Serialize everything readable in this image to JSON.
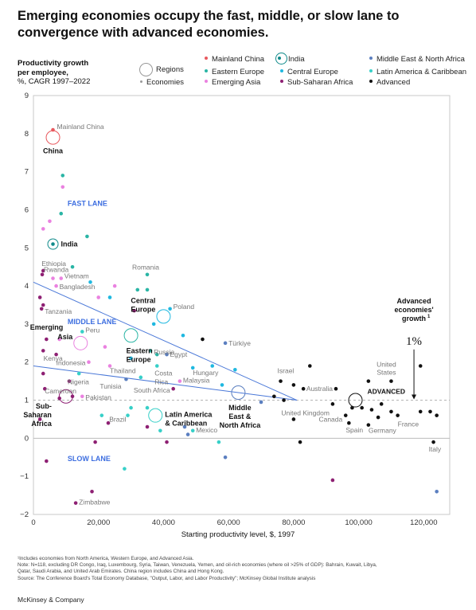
{
  "title": "Emerging economies occupy the fast, middle, or slow lane to convergence with advanced economies.",
  "y_axis_title": {
    "line1": "Productivity growth",
    "line2": "per employee,",
    "line3": "%, CAGR 1997–2022"
  },
  "x_axis_title": "Starting productivity level, $, 1997",
  "legend": {
    "regions_label": "Regions",
    "economies_label": "Economies",
    "items": [
      {
        "label": "Mainland China",
        "color": "#e8595e"
      },
      {
        "label": "India",
        "color": "#0f8a8a"
      },
      {
        "label": "Middle East & North Africa",
        "color": "#5b7fc0"
      },
      {
        "label": "Eastern Europe",
        "color": "#2ab5a5"
      },
      {
        "label": "Central Europe",
        "color": "#1fb8e0"
      },
      {
        "label": "Latin America & Caribbean",
        "color": "#37d0c8"
      },
      {
        "label": "Emerging Asia",
        "color": "#ea82e0"
      },
      {
        "label": "Sub-Saharan Africa",
        "color": "#8e2073"
      },
      {
        "label": "Advanced",
        "color": "#111111"
      }
    ]
  },
  "annotations": {
    "fast_lane": "FAST LANE",
    "middle_lane": "MIDDLE LANE",
    "slow_lane": "SLOW LANE",
    "advanced": "ADVANCED",
    "adv_growth_1": "Advanced",
    "adv_growth_2": "economies'",
    "adv_growth_3": "growth",
    "adv_growth_sup": "1",
    "adv_growth_value": "1%"
  },
  "footnotes": [
    "¹Includes economies from North America, Western Europe, and Advanced Asia.",
    "Note: N=118, excluding DR Congo, Iraq, Luxembourg, Syria, Taiwan, Venezuela, Yemen, and oil-rich economies (where oil >25% of GDP): Bahrain, Kuwait, Libya,",
    "Qatar, Saudi Arabia, and United Arab Emirates. China region includes China and Hong Kong.",
    "Source: The Conference Board's Total Economy Database, \"Output, Labor, and Labor Productivity\"; McKinsey Global Institute analysis"
  ],
  "brand": "McKinsey & Company",
  "chart_data": {
    "type": "scatter",
    "xlim": [
      0,
      128000
    ],
    "ylim": [
      -2,
      9
    ],
    "x_ticks": [
      0,
      20000,
      40000,
      60000,
      80000,
      100000,
      120000
    ],
    "x_tick_labels": [
      "0",
      "20,000",
      "40,000",
      "60,000",
      "80,000",
      "100,000",
      "120,000"
    ],
    "y_ticks": [
      -2,
      -1,
      0,
      1,
      2,
      3,
      4,
      5,
      6,
      7,
      8,
      9
    ],
    "y_tick_labels": [
      "−2",
      "−1",
      "0",
      "1",
      "2",
      "3",
      "4",
      "5",
      "6",
      "7",
      "8",
      "9"
    ],
    "grid": false,
    "reference_line": {
      "y": 1,
      "label": "Advanced economies' growth 1%"
    },
    "region_colors": {
      "china": "#e8595e",
      "india": "#0f8a8a",
      "mena": "#5b7fc0",
      "eastern_europe": "#2ab5a5",
      "central_europe": "#1fb8e0",
      "latam": "#37d0c8",
      "emerging_asia": "#ea82e0",
      "ssa": "#8e2073",
      "advanced": "#111111"
    },
    "convergence_lines": [
      {
        "name": "middle",
        "from": [
          0,
          4.1
        ],
        "to": [
          81000,
          1.0
        ]
      },
      {
        "name": "slow",
        "from": [
          0,
          1.9
        ],
        "to": [
          81000,
          1.0
        ]
      }
    ],
    "regions": [
      {
        "label": "China",
        "x": 6000,
        "y": 7.9,
        "region": "china"
      },
      {
        "label": "India",
        "x": 6000,
        "y": 5.1,
        "region": "india"
      },
      {
        "label": "Central Europe",
        "x": 40000,
        "y": 3.2,
        "region": "central_europe"
      },
      {
        "label": "Emerging Asia",
        "x": 14500,
        "y": 2.5,
        "region": "emerging_asia"
      },
      {
        "label": "Eastern Europe",
        "x": 30000,
        "y": 2.7,
        "region": "eastern_europe"
      },
      {
        "label": "Middle East & North Africa",
        "x": 63000,
        "y": 1.2,
        "region": "mena"
      },
      {
        "label": "Sub-Saharan Africa",
        "x": 10000,
        "y": 1.1,
        "region": "ssa"
      },
      {
        "label": "Latin America & Caribbean",
        "x": 37500,
        "y": 0.6,
        "region": "latam"
      },
      {
        "label": "ADVANCED",
        "x": 99000,
        "y": 1.0,
        "region": "advanced"
      }
    ],
    "economies": [
      {
        "label": "Mainland China",
        "x": 6000,
        "y": 8.1,
        "region": "china"
      },
      {
        "label": "India",
        "x": 6000,
        "y": 5.1,
        "region": "india"
      },
      {
        "label": "",
        "x": 9000,
        "y": 6.9,
        "region": "eastern_europe"
      },
      {
        "label": "",
        "x": 9000,
        "y": 6.6,
        "region": "emerging_asia"
      },
      {
        "label": "",
        "x": 8500,
        "y": 5.9,
        "region": "eastern_europe"
      },
      {
        "label": "",
        "x": 5000,
        "y": 5.7,
        "region": "emerging_asia"
      },
      {
        "label": "",
        "x": 3000,
        "y": 5.5,
        "region": "emerging_asia"
      },
      {
        "label": "",
        "x": 16500,
        "y": 5.3,
        "region": "eastern_europe"
      },
      {
        "label": "Ethiopia",
        "x": 3000,
        "y": 4.4,
        "region": "ssa"
      },
      {
        "label": "Rwanda",
        "x": 2700,
        "y": 4.3,
        "region": "ssa"
      },
      {
        "label": "Romania",
        "x": 35000,
        "y": 4.3,
        "region": "eastern_europe"
      },
      {
        "label": "",
        "x": 12000,
        "y": 4.5,
        "region": "eastern_europe"
      },
      {
        "label": "Vietnam",
        "x": 8500,
        "y": 4.2,
        "region": "emerging_asia"
      },
      {
        "label": "",
        "x": 6000,
        "y": 4.2,
        "region": "emerging_asia"
      },
      {
        "label": "",
        "x": 17500,
        "y": 4.1,
        "region": "central_europe"
      },
      {
        "label": "Bangladesh",
        "x": 7000,
        "y": 4.0,
        "region": "emerging_asia"
      },
      {
        "label": "",
        "x": 25000,
        "y": 4.0,
        "region": "emerging_asia"
      },
      {
        "label": "",
        "x": 32000,
        "y": 3.9,
        "region": "eastern_europe"
      },
      {
        "label": "",
        "x": 35000,
        "y": 3.9,
        "region": "eastern_europe"
      },
      {
        "label": "",
        "x": 20000,
        "y": 3.7,
        "region": "emerging_asia"
      },
      {
        "label": "",
        "x": 23500,
        "y": 3.7,
        "region": "central_europe"
      },
      {
        "label": "",
        "x": 2000,
        "y": 3.7,
        "region": "ssa"
      },
      {
        "label": "",
        "x": 3000,
        "y": 3.5,
        "region": "ssa"
      },
      {
        "label": "Poland",
        "x": 42000,
        "y": 3.4,
        "region": "central_europe"
      },
      {
        "label": "Tanzania",
        "x": 2500,
        "y": 3.4,
        "region": "ssa"
      },
      {
        "label": "",
        "x": 31000,
        "y": 3.35,
        "region": "ssa"
      },
      {
        "label": "",
        "x": 37000,
        "y": 3.0,
        "region": "central_europe"
      },
      {
        "label": "Peru",
        "x": 15000,
        "y": 2.8,
        "region": "latam"
      },
      {
        "label": "",
        "x": 4000,
        "y": 2.6,
        "region": "ssa"
      },
      {
        "label": "",
        "x": 8000,
        "y": 2.6,
        "region": "emerging_asia"
      },
      {
        "label": "Türkiye",
        "x": 59000,
        "y": 2.5,
        "region": "mena"
      },
      {
        "label": "",
        "x": 52000,
        "y": 2.6,
        "region": "advanced"
      },
      {
        "label": "",
        "x": 46000,
        "y": 2.7,
        "region": "central_europe"
      },
      {
        "label": "Russia",
        "x": 38000,
        "y": 2.2,
        "region": "eastern_europe"
      },
      {
        "label": "",
        "x": 22000,
        "y": 2.4,
        "region": "emerging_asia"
      },
      {
        "label": "",
        "x": 3000,
        "y": 2.3,
        "region": "ssa"
      },
      {
        "label": "Egypt",
        "x": 41000,
        "y": 2.2,
        "region": "mena"
      },
      {
        "label": "",
        "x": 36000,
        "y": 2.3,
        "region": "eastern_europe"
      },
      {
        "label": "Kenya",
        "x": 7000,
        "y": 2.2,
        "region": "ssa"
      },
      {
        "label": "Indonesia",
        "x": 17000,
        "y": 2.0,
        "region": "emerging_asia"
      },
      {
        "label": "",
        "x": 30000,
        "y": 2.1,
        "region": "central_europe"
      },
      {
        "label": "Thailand",
        "x": 23500,
        "y": 1.9,
        "region": "emerging_asia"
      },
      {
        "label": "Costa Rica",
        "x": 38000,
        "y": 1.9,
        "region": "latam"
      },
      {
        "label": "Hungary",
        "x": 49000,
        "y": 1.85,
        "region": "central_europe"
      },
      {
        "label": "",
        "x": 55000,
        "y": 1.9,
        "region": "central_europe"
      },
      {
        "label": "",
        "x": 62000,
        "y": 1.8,
        "region": "central_europe"
      },
      {
        "label": "",
        "x": 3000,
        "y": 1.7,
        "region": "ssa"
      },
      {
        "label": "",
        "x": 14000,
        "y": 1.7,
        "region": "latam"
      },
      {
        "label": "Nigeria",
        "x": 11000,
        "y": 1.5,
        "region": "ssa"
      },
      {
        "label": "Malaysia",
        "x": 45000,
        "y": 1.5,
        "region": "emerging_asia"
      },
      {
        "label": "Israel",
        "x": 76000,
        "y": 1.5,
        "region": "advanced"
      },
      {
        "label": "Tunisia",
        "x": 28500,
        "y": 1.55,
        "region": "mena"
      },
      {
        "label": "",
        "x": 33000,
        "y": 1.6,
        "region": "latam"
      },
      {
        "label": "Cameroon",
        "x": 3500,
        "y": 1.3,
        "region": "ssa"
      },
      {
        "label": "South Africa",
        "x": 43000,
        "y": 1.3,
        "region": "ssa"
      },
      {
        "label": "",
        "x": 58000,
        "y": 1.4,
        "region": "central_europe"
      },
      {
        "label": "Pakistan",
        "x": 15000,
        "y": 1.1,
        "region": "emerging_asia"
      },
      {
        "label": "",
        "x": 12000,
        "y": 1.1,
        "region": "ssa"
      },
      {
        "label": "",
        "x": 8000,
        "y": 1.05,
        "region": "ssa"
      },
      {
        "label": "Australia",
        "x": 93000,
        "y": 1.3,
        "region": "advanced"
      },
      {
        "label": "United Kingdom",
        "x": 92000,
        "y": 0.9,
        "region": "advanced"
      },
      {
        "label": "",
        "x": 85000,
        "y": 1.9,
        "region": "advanced"
      },
      {
        "label": "",
        "x": 80000,
        "y": 1.4,
        "region": "advanced"
      },
      {
        "label": "",
        "x": 83000,
        "y": 1.3,
        "region": "advanced"
      },
      {
        "label": "",
        "x": 74000,
        "y": 1.1,
        "region": "advanced"
      },
      {
        "label": "",
        "x": 77000,
        "y": 1.0,
        "region": "advanced"
      },
      {
        "label": "",
        "x": 70000,
        "y": 0.95,
        "region": "mena"
      },
      {
        "label": "",
        "x": 103000,
        "y": 1.5,
        "region": "advanced"
      },
      {
        "label": "United States",
        "x": 110000,
        "y": 1.5,
        "region": "advanced"
      },
      {
        "label": "",
        "x": 119000,
        "y": 1.9,
        "region": "advanced"
      },
      {
        "label": "Canada",
        "x": 96000,
        "y": 0.6,
        "region": "advanced"
      },
      {
        "label": "",
        "x": 98000,
        "y": 0.8,
        "region": "advanced"
      },
      {
        "label": "",
        "x": 101000,
        "y": 0.8,
        "region": "advanced"
      },
      {
        "label": "",
        "x": 104000,
        "y": 0.75,
        "region": "advanced"
      },
      {
        "label": "",
        "x": 107000,
        "y": 0.9,
        "region": "advanced"
      },
      {
        "label": "",
        "x": 110000,
        "y": 0.7,
        "region": "advanced"
      },
      {
        "label": "",
        "x": 106000,
        "y": 0.55,
        "region": "advanced"
      },
      {
        "label": "",
        "x": 119000,
        "y": 0.7,
        "region": "advanced"
      },
      {
        "label": "",
        "x": 122000,
        "y": 0.7,
        "region": "advanced"
      },
      {
        "label": "",
        "x": 124000,
        "y": 0.6,
        "region": "advanced"
      },
      {
        "label": "France",
        "x": 112000,
        "y": 0.6,
        "region": "advanced"
      },
      {
        "label": "Spain",
        "x": 97000,
        "y": 0.4,
        "region": "advanced"
      },
      {
        "label": "Germany",
        "x": 103000,
        "y": 0.35,
        "region": "advanced"
      },
      {
        "label": "",
        "x": 80000,
        "y": 0.5,
        "region": "advanced"
      },
      {
        "label": "",
        "x": 82000,
        "y": -0.1,
        "region": "advanced"
      },
      {
        "label": "Italy",
        "x": 123000,
        "y": -0.1,
        "region": "advanced"
      },
      {
        "label": "Brazil",
        "x": 29000,
        "y": 0.6,
        "region": "latam"
      },
      {
        "label": "Mexico",
        "x": 49000,
        "y": 0.2,
        "region": "latam"
      },
      {
        "label": "",
        "x": 46500,
        "y": 0.3,
        "region": "mena"
      },
      {
        "label": "",
        "x": 47500,
        "y": 0.1,
        "region": "mena"
      },
      {
        "label": "",
        "x": 21000,
        "y": 0.6,
        "region": "latam"
      },
      {
        "label": "",
        "x": 30000,
        "y": 0.8,
        "region": "latam"
      },
      {
        "label": "",
        "x": 35000,
        "y": 0.3,
        "region": "ssa"
      },
      {
        "label": "",
        "x": 23000,
        "y": 0.4,
        "region": "ssa"
      },
      {
        "label": "",
        "x": 35000,
        "y": 0.8,
        "region": "latam"
      },
      {
        "label": "",
        "x": 39000,
        "y": 0.2,
        "region": "latam"
      },
      {
        "label": "",
        "x": 19000,
        "y": -0.1,
        "region": "ssa"
      },
      {
        "label": "",
        "x": 41000,
        "y": -0.1,
        "region": "ssa"
      },
      {
        "label": "",
        "x": 57000,
        "y": -0.1,
        "region": "latam"
      },
      {
        "label": "",
        "x": 2000,
        "y": 0.5,
        "region": "ssa"
      },
      {
        "label": "",
        "x": 4000,
        "y": -0.6,
        "region": "ssa"
      },
      {
        "label": "",
        "x": 28000,
        "y": -0.8,
        "region": "latam"
      },
      {
        "label": "",
        "x": 59000,
        "y": -0.5,
        "region": "mena"
      },
      {
        "label": "",
        "x": 92000,
        "y": -1.1,
        "region": "ssa"
      },
      {
        "label": "",
        "x": 124000,
        "y": -1.4,
        "region": "mena"
      },
      {
        "label": "",
        "x": 18000,
        "y": -1.4,
        "region": "ssa"
      },
      {
        "label": "Zimbabwe",
        "x": 13000,
        "y": -1.7,
        "region": "ssa"
      }
    ]
  }
}
